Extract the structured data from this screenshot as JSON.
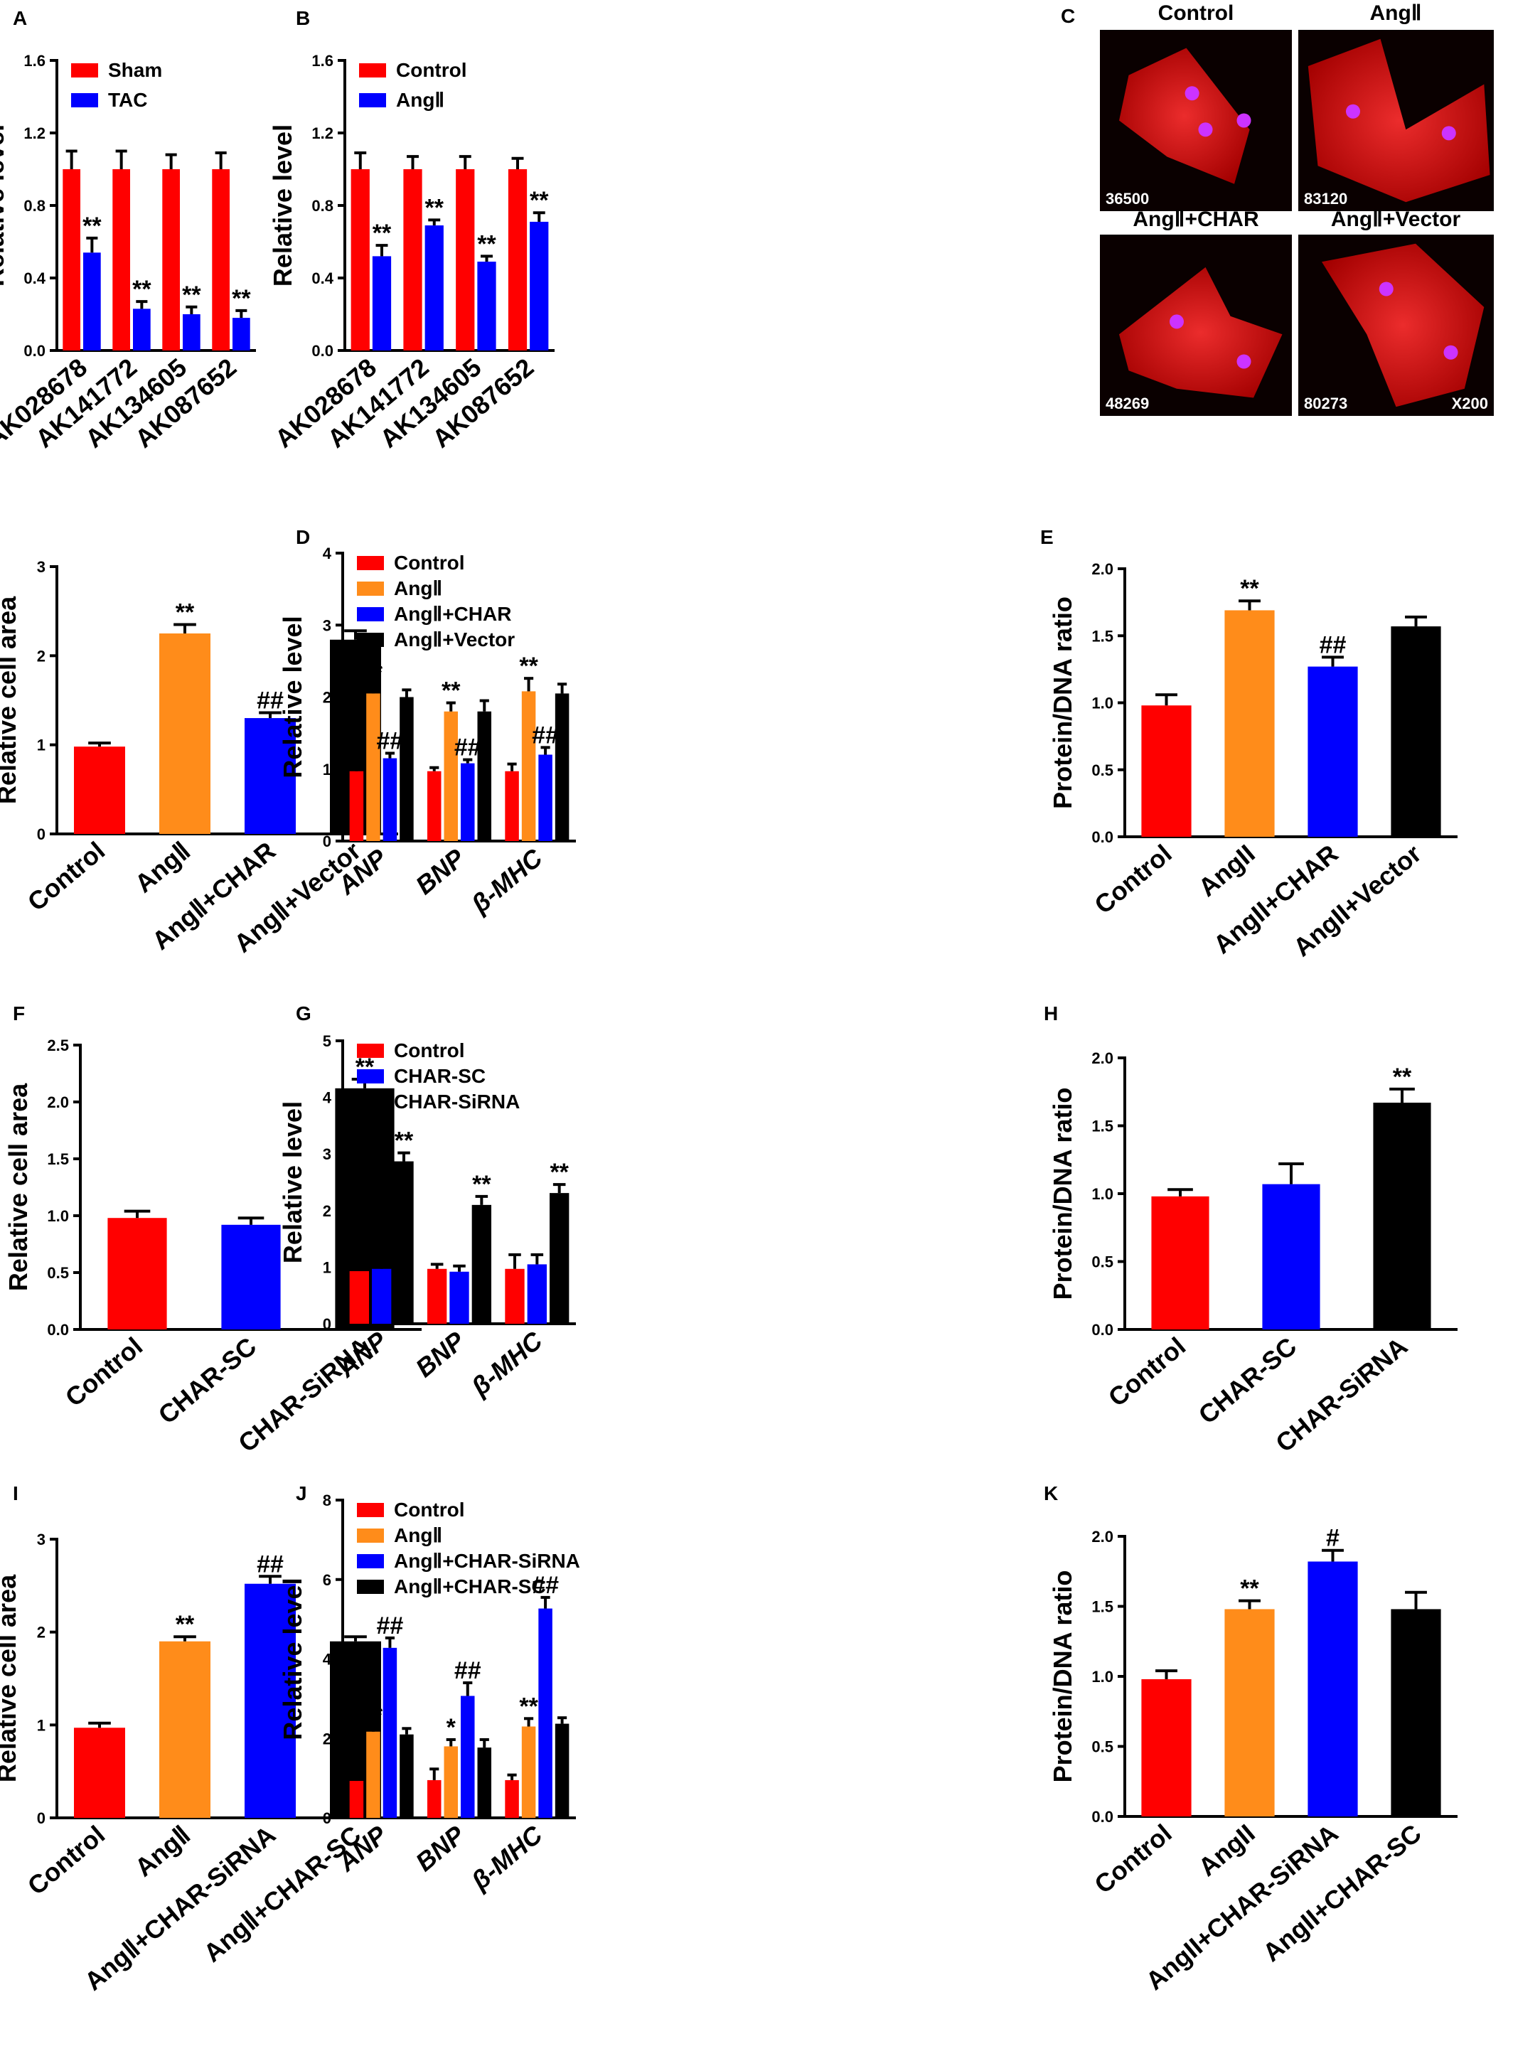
{
  "colors": {
    "red": "#ff0000",
    "blue": "#0000ff",
    "orange": "#ff8c1a",
    "black": "#000000"
  },
  "micrographs": {
    "letter": "C",
    "panels": [
      {
        "title": "Control",
        "label": "36500",
        "extra": ""
      },
      {
        "title": "AngⅡ",
        "label": "83120",
        "extra": ""
      },
      {
        "title": "AngⅡ+CHAR",
        "label": "48269",
        "extra": ""
      },
      {
        "title": "AngⅡ+Vector",
        "label": "80273",
        "extra": "X200"
      }
    ]
  },
  "chart_data": [
    {
      "id": "A",
      "letter": "A",
      "type": "bar",
      "ylabel": "Relative level",
      "ylim": [
        0,
        1.6
      ],
      "yticks": [
        "0.0",
        "0.4",
        "0.8",
        "1.2",
        "1.6"
      ],
      "categories": [
        "AK028678",
        "AK141772",
        "AK134605",
        "AK087652"
      ],
      "rotate": true,
      "italic": false,
      "series": [
        {
          "name": "Sham",
          "color": "red",
          "values": [
            1.0,
            1.0,
            1.0,
            1.0
          ],
          "errors": [
            0.1,
            0.1,
            0.08,
            0.09
          ],
          "ann": [
            "",
            "",
            "",
            ""
          ]
        },
        {
          "name": "TAC",
          "color": "blue",
          "values": [
            0.54,
            0.23,
            0.2,
            0.18
          ],
          "errors": [
            0.08,
            0.04,
            0.04,
            0.04
          ],
          "ann": [
            "**",
            "**",
            "**",
            "**"
          ]
        }
      ],
      "legend": "top-left"
    },
    {
      "id": "B",
      "letter": "B",
      "type": "bar",
      "ylabel": "Relative level",
      "ylim": [
        0,
        1.6
      ],
      "yticks": [
        "0.0",
        "0.4",
        "0.8",
        "1.2",
        "1.6"
      ],
      "categories": [
        "AK028678",
        "AK141772",
        "AK134605",
        "AK087652"
      ],
      "rotate": true,
      "italic": false,
      "series": [
        {
          "name": "Control",
          "color": "red",
          "values": [
            1.0,
            1.0,
            1.0,
            1.0
          ],
          "errors": [
            0.09,
            0.07,
            0.07,
            0.06
          ],
          "ann": [
            "",
            "",
            "",
            ""
          ]
        },
        {
          "name": "AngⅡ",
          "color": "blue",
          "values": [
            0.52,
            0.69,
            0.49,
            0.71
          ],
          "errors": [
            0.06,
            0.03,
            0.03,
            0.05
          ],
          "ann": [
            "**",
            "**",
            "**",
            "**"
          ]
        }
      ],
      "legend": "top-left"
    },
    {
      "id": "R2a",
      "letter": "",
      "type": "bar",
      "ylabel": "Relative cell area",
      "ylim": [
        0,
        3
      ],
      "yticks": [
        "0",
        "1",
        "2",
        "3"
      ],
      "categories": [
        "Control",
        "AngⅡ",
        "AngⅡ+CHAR",
        "AngⅡ+Vector"
      ],
      "rotate": true,
      "italic": false,
      "bars": [
        {
          "value": 0.98,
          "error": 0.04,
          "color": "red",
          "ann": ""
        },
        {
          "value": 2.25,
          "error": 0.1,
          "color": "orange",
          "ann": "**"
        },
        {
          "value": 1.3,
          "error": 0.06,
          "color": "blue",
          "ann": "##"
        },
        {
          "value": 2.18,
          "error": 0.1,
          "color": "black",
          "ann": ""
        }
      ]
    },
    {
      "id": "D",
      "letter": "D",
      "type": "bar",
      "ylabel": "Relative level",
      "ylim": [
        0,
        4
      ],
      "yticks": [
        "0",
        "1",
        "2",
        "3",
        "4"
      ],
      "categories": [
        "ANP",
        "BNP",
        "β-MHC"
      ],
      "rotate": true,
      "italic": true,
      "series": [
        {
          "name": "Control",
          "color": "red",
          "values": [
            0.97,
            0.97,
            0.97
          ],
          "errors": [
            0.08,
            0.05,
            0.1
          ],
          "ann": [
            "",
            "",
            ""
          ]
        },
        {
          "name": "AngⅡ",
          "color": "orange",
          "values": [
            2.05,
            1.8,
            2.08
          ],
          "errors": [
            0.12,
            0.12,
            0.18
          ],
          "ann": [
            "**",
            "**",
            "**"
          ]
        },
        {
          "name": "AngⅡ+CHAR",
          "color": "blue",
          "values": [
            1.15,
            1.08,
            1.2
          ],
          "errors": [
            0.07,
            0.05,
            0.1
          ],
          "ann": [
            "##",
            "##",
            "##"
          ]
        },
        {
          "name": "AngⅡ+Vector",
          "color": "black",
          "values": [
            2.0,
            1.8,
            2.05
          ],
          "errors": [
            0.1,
            0.15,
            0.13
          ],
          "ann": [
            "",
            "",
            ""
          ]
        }
      ],
      "legend": "top-left"
    },
    {
      "id": "E",
      "letter": "E",
      "type": "bar",
      "ylabel": "Protein/DNA ratio",
      "ylim": [
        0,
        2.0
      ],
      "yticks": [
        "0.0",
        "0.5",
        "1.0",
        "1.5",
        "2.0"
      ],
      "categories": [
        "Control",
        "AngII",
        "AngII+CHAR",
        "AngII+Vector"
      ],
      "rotate": true,
      "italic": false,
      "bars": [
        {
          "value": 0.98,
          "error": 0.08,
          "color": "red",
          "ann": ""
        },
        {
          "value": 1.69,
          "error": 0.07,
          "color": "orange",
          "ann": "**"
        },
        {
          "value": 1.27,
          "error": 0.07,
          "color": "blue",
          "ann": "##"
        },
        {
          "value": 1.57,
          "error": 0.07,
          "color": "black",
          "ann": ""
        }
      ]
    },
    {
      "id": "F",
      "letter": "F",
      "type": "bar",
      "ylabel": "Relative cell area",
      "ylim": [
        0,
        2.5
      ],
      "yticks": [
        "0.0",
        "0.5",
        "1.0",
        "1.5",
        "2.0",
        "2.5"
      ],
      "categories": [
        "Control",
        "CHAR-SC",
        "CHAR-SiRNA"
      ],
      "rotate": true,
      "italic": false,
      "bars": [
        {
          "value": 0.98,
          "error": 0.06,
          "color": "red",
          "ann": ""
        },
        {
          "value": 0.92,
          "error": 0.06,
          "color": "blue",
          "ann": ""
        },
        {
          "value": 2.12,
          "error": 0.08,
          "color": "black",
          "ann": "**"
        }
      ]
    },
    {
      "id": "G",
      "letter": "G",
      "type": "bar",
      "ylabel": "Relative level",
      "ylim": [
        0,
        5
      ],
      "yticks": [
        "0",
        "1",
        "2",
        "3",
        "4",
        "5"
      ],
      "categories": [
        "ANP",
        "BNP",
        "β-MHC"
      ],
      "rotate": true,
      "italic": true,
      "series": [
        {
          "name": "Control",
          "color": "red",
          "values": [
            0.93,
            0.97,
            0.97
          ],
          "errors": [
            0.1,
            0.08,
            0.25
          ],
          "ann": [
            "",
            "",
            ""
          ]
        },
        {
          "name": "CHAR-SC",
          "color": "blue",
          "values": [
            0.97,
            0.92,
            1.05
          ],
          "errors": [
            0.06,
            0.1,
            0.17
          ],
          "ann": [
            "",
            "",
            ""
          ]
        },
        {
          "name": "CHAR-SiRNA",
          "color": "black",
          "values": [
            2.87,
            2.1,
            2.31
          ],
          "errors": [
            0.15,
            0.15,
            0.15
          ],
          "ann": [
            "**",
            "**",
            "**"
          ]
        }
      ],
      "legend": "top-left"
    },
    {
      "id": "H",
      "letter": "H",
      "type": "bar",
      "ylabel": "Protein/DNA ratio",
      "ylim": [
        0,
        2.0
      ],
      "yticks": [
        "0.0",
        "0.5",
        "1.0",
        "1.5",
        "2.0"
      ],
      "categories": [
        "Control",
        "CHAR-SC",
        "CHAR-SiRNA"
      ],
      "rotate": true,
      "italic": false,
      "bars": [
        {
          "value": 0.98,
          "error": 0.05,
          "color": "red",
          "ann": ""
        },
        {
          "value": 1.07,
          "error": 0.15,
          "color": "blue",
          "ann": ""
        },
        {
          "value": 1.67,
          "error": 0.1,
          "color": "black",
          "ann": "**"
        }
      ]
    },
    {
      "id": "I",
      "letter": "I",
      "type": "bar",
      "ylabel": "Relative cell area",
      "ylim": [
        0,
        3
      ],
      "yticks": [
        "0",
        "1",
        "2",
        "3"
      ],
      "categories": [
        "Control",
        "AngⅡ",
        "AngⅡ+CHAR-SiRNA",
        "AngⅡ+CHAR-SC"
      ],
      "rotate": true,
      "italic": false,
      "bars": [
        {
          "value": 0.97,
          "error": 0.05,
          "color": "red",
          "ann": ""
        },
        {
          "value": 1.9,
          "error": 0.05,
          "color": "orange",
          "ann": "**"
        },
        {
          "value": 2.52,
          "error": 0.08,
          "color": "blue",
          "ann": "##"
        },
        {
          "value": 1.9,
          "error": 0.05,
          "color": "black",
          "ann": ""
        }
      ]
    },
    {
      "id": "J",
      "letter": "J",
      "type": "bar",
      "ylabel": "Relative level",
      "ylim": [
        0,
        8
      ],
      "yticks": [
        "0",
        "2",
        "4",
        "6",
        "8"
      ],
      "categories": [
        "ANP",
        "BNP",
        "β-MHC"
      ],
      "rotate": true,
      "italic": true,
      "series": [
        {
          "name": "Control",
          "color": "red",
          "values": [
            0.93,
            0.95,
            0.95
          ],
          "errors": [
            0.15,
            0.28,
            0.13
          ],
          "ann": [
            "",
            "",
            ""
          ]
        },
        {
          "name": "AngⅡ",
          "color": "orange",
          "values": [
            2.17,
            1.8,
            2.3
          ],
          "errors": [
            0.1,
            0.17,
            0.2
          ],
          "ann": [
            "**",
            "*",
            "**"
          ]
        },
        {
          "name": "AngⅡ+CHAR-SiRNA",
          "color": "blue",
          "values": [
            4.28,
            3.07,
            5.27
          ],
          "errors": [
            0.25,
            0.33,
            0.28
          ],
          "ann": [
            "##",
            "##",
            "##"
          ]
        },
        {
          "name": "AngⅡ+CHAR-SC",
          "color": "black",
          "values": [
            2.1,
            1.77,
            2.37
          ],
          "errors": [
            0.15,
            0.2,
            0.15
          ],
          "ann": [
            "",
            "",
            ""
          ]
        }
      ],
      "legend": "top-left"
    },
    {
      "id": "K",
      "letter": "K",
      "type": "bar",
      "ylabel": "Protein/DNA ratio",
      "ylim": [
        0,
        2.0
      ],
      "yticks": [
        "0.0",
        "0.5",
        "1.0",
        "1.5",
        "2.0"
      ],
      "categories": [
        "Control",
        "AngII",
        "AngII+CHAR-SiRNA",
        "AngII+CHAR-SC"
      ],
      "rotate": true,
      "italic": false,
      "bars": [
        {
          "value": 0.98,
          "error": 0.06,
          "color": "red",
          "ann": ""
        },
        {
          "value": 1.48,
          "error": 0.06,
          "color": "orange",
          "ann": "**"
        },
        {
          "value": 1.82,
          "error": 0.08,
          "color": "blue",
          "ann": "#"
        },
        {
          "value": 1.48,
          "error": 0.12,
          "color": "black",
          "ann": ""
        }
      ]
    }
  ]
}
